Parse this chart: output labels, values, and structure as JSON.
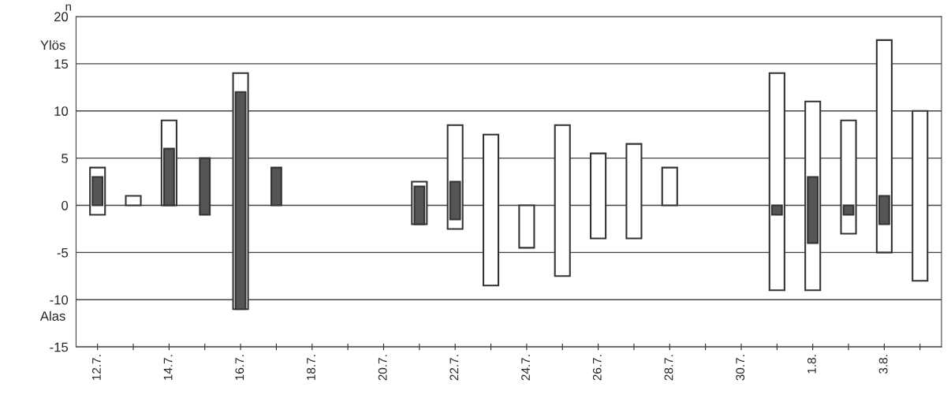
{
  "chart_data": {
    "type": "bar",
    "ylabel": "n",
    "annotations": [
      "Ylös",
      "Alas"
    ],
    "categories": [
      "12.7.",
      null,
      "14.7.",
      null,
      "16.7.",
      null,
      "18.7.",
      null,
      "20.7.",
      null,
      "22.7.",
      null,
      "24.7.",
      null,
      "26.7.",
      null,
      "28.7.",
      null,
      "30.7.",
      null,
      "1.8.",
      null,
      "3.8.",
      null
    ],
    "series": [
      {
        "color": "#ffffff",
        "base": [
          -1,
          0,
          0,
          null,
          -11,
          null,
          null,
          null,
          null,
          -2,
          -2.5,
          -8.5,
          -4.5,
          -7.5,
          -3.5,
          -3.5,
          0,
          null,
          null,
          -9,
          -9,
          -3,
          -5,
          -8
        ],
        "values": [
          5,
          1,
          9,
          null,
          25,
          null,
          null,
          null,
          null,
          4.5,
          11,
          16,
          4.5,
          16,
          9,
          10,
          4,
          null,
          null,
          23,
          20,
          12,
          22.5,
          18
        ]
      },
      {
        "color": "#555555",
        "base": [
          0,
          null,
          0,
          -1,
          -11,
          0,
          null,
          null,
          null,
          -2,
          -1.5,
          null,
          null,
          null,
          null,
          null,
          null,
          null,
          null,
          -1,
          -4,
          -1,
          -2,
          null
        ],
        "values": [
          3,
          null,
          6,
          6,
          23,
          4,
          null,
          null,
          null,
          4,
          4,
          null,
          null,
          null,
          null,
          null,
          null,
          null,
          null,
          1,
          7,
          1,
          3,
          null
        ]
      }
    ],
    "ylim": [
      -15,
      20
    ],
    "yticks": [
      -15,
      -10,
      -5,
      0,
      5,
      10,
      15,
      20
    ],
    "grid": "y"
  }
}
